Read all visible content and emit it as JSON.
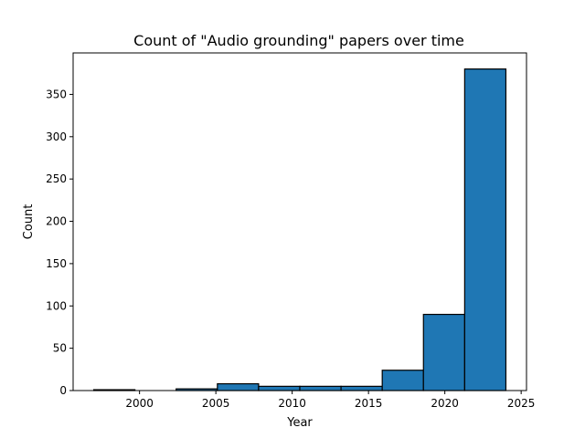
{
  "chart_data": {
    "type": "bar",
    "title": "Count of \"Audio grounding\" papers over time",
    "xlabel": "Year",
    "ylabel": "Count",
    "xlim": [
      1995.65,
      2025.35
    ],
    "ylim": [
      0,
      399
    ],
    "xticks": [
      2000,
      2005,
      2010,
      2015,
      2020,
      2025
    ],
    "yticks": [
      0,
      50,
      100,
      150,
      200,
      250,
      300,
      350
    ],
    "bins": [
      {
        "x0": 1997.0,
        "x1": 1999.7,
        "value": 1
      },
      {
        "x0": 1999.7,
        "x1": 2002.4,
        "value": 0
      },
      {
        "x0": 2002.4,
        "x1": 2005.1,
        "value": 2
      },
      {
        "x0": 2005.1,
        "x1": 2007.8,
        "value": 8
      },
      {
        "x0": 2007.8,
        "x1": 2010.5,
        "value": 5
      },
      {
        "x0": 2010.5,
        "x1": 2013.2,
        "value": 5
      },
      {
        "x0": 2013.2,
        "x1": 2015.9,
        "value": 5
      },
      {
        "x0": 2015.9,
        "x1": 2018.6,
        "value": 24
      },
      {
        "x0": 2018.6,
        "x1": 2021.3,
        "value": 90
      },
      {
        "x0": 2021.3,
        "x1": 2024.0,
        "value": 380
      }
    ],
    "bar_color": "#1f77b4",
    "edge_color": "#000000",
    "grid": false,
    "legend": "none"
  }
}
